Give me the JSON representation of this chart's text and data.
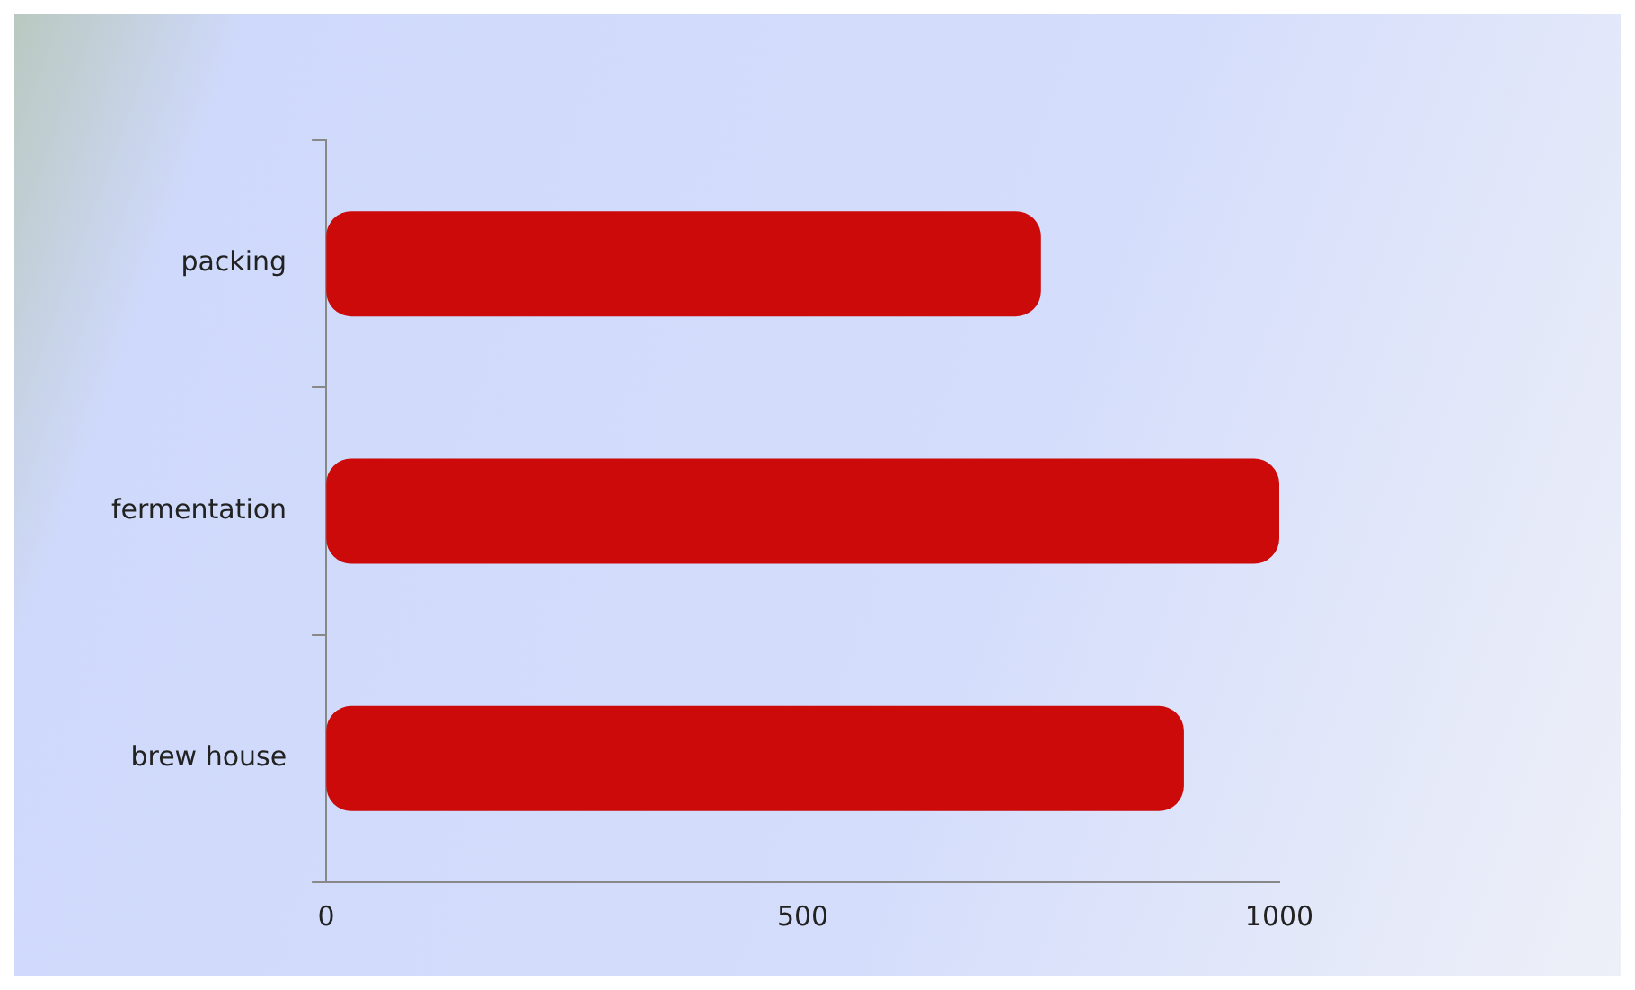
{
  "chart_data": {
    "type": "bar",
    "orientation": "horizontal",
    "categories": [
      "packing",
      "fermentation",
      "brew house"
    ],
    "values": [
      750,
      1000,
      900
    ],
    "color": "#cc0a0a",
    "xlim": [
      0,
      1000
    ],
    "xticks": [
      0,
      500,
      1000
    ],
    "grid": false
  }
}
